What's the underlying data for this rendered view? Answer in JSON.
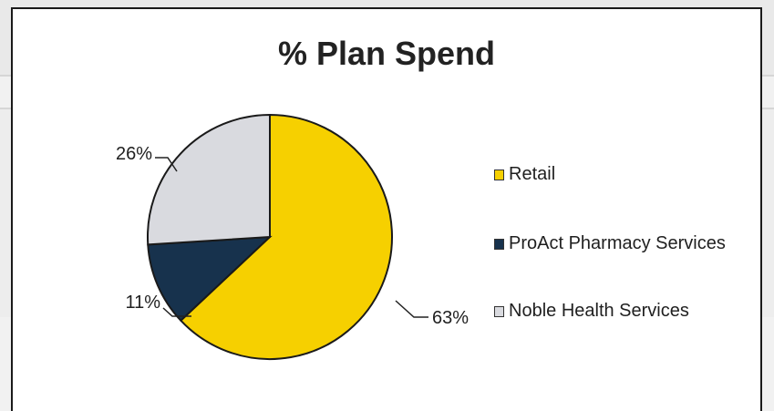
{
  "chart_data": {
    "type": "pie",
    "title": "% Plan Spend",
    "categories": [
      "Retail",
      "ProAct Pharmacy Services",
      "Noble Health Services"
    ],
    "values": [
      63,
      11,
      26
    ],
    "data_labels": [
      "63%",
      "11%",
      "26%"
    ],
    "colors": [
      "#f6d000",
      "#17324d",
      "#d9dadf"
    ],
    "legend": "right"
  }
}
